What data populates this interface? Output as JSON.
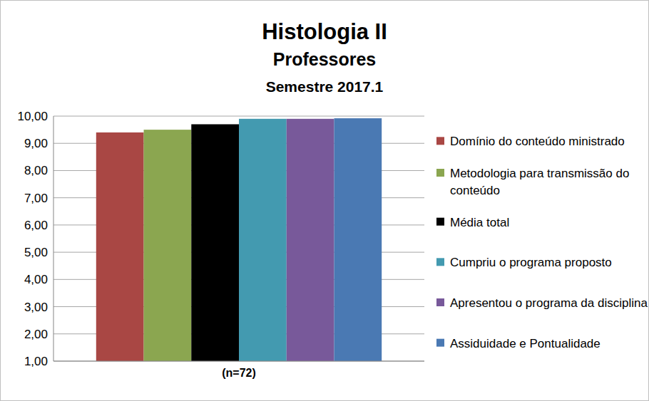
{
  "chart_data": {
    "type": "bar",
    "title": "Histologia II",
    "subtitle": [
      "Professores",
      "Semestre 2017.1"
    ],
    "categories": [
      "(n=72)"
    ],
    "series": [
      {
        "name": "Domínio do conteúdo ministrado",
        "color": "#a94744",
        "values": [
          9.4
        ]
      },
      {
        "name": "Metodologia para transmissão do conteúdo",
        "color": "#8ba650",
        "values": [
          9.5
        ]
      },
      {
        "name": "Média total",
        "color": "#000000",
        "values": [
          9.7
        ]
      },
      {
        "name": "Cumpriu o programa proposto",
        "color": "#439ab0",
        "values": [
          9.9
        ]
      },
      {
        "name": "Apresentou o programa da disciplina",
        "color": "#78599a",
        "values": [
          9.9
        ]
      },
      {
        "name": "Assiduidade e Pontualidade",
        "color": "#4a79b3",
        "values": [
          9.92
        ]
      }
    ],
    "ylim": [
      1,
      10
    ],
    "yticks": [
      {
        "value": 1,
        "label": "1,00"
      },
      {
        "value": 2,
        "label": "2,00"
      },
      {
        "value": 3,
        "label": "3,00"
      },
      {
        "value": 4,
        "label": "4,00"
      },
      {
        "value": 5,
        "label": "5,00"
      },
      {
        "value": 6,
        "label": "6,00"
      },
      {
        "value": 7,
        "label": "7,00"
      },
      {
        "value": 8,
        "label": "8,00"
      },
      {
        "value": 9,
        "label": "9,00"
      },
      {
        "value": 10,
        "label": "10,00"
      }
    ],
    "grid": true,
    "legend": "right"
  }
}
